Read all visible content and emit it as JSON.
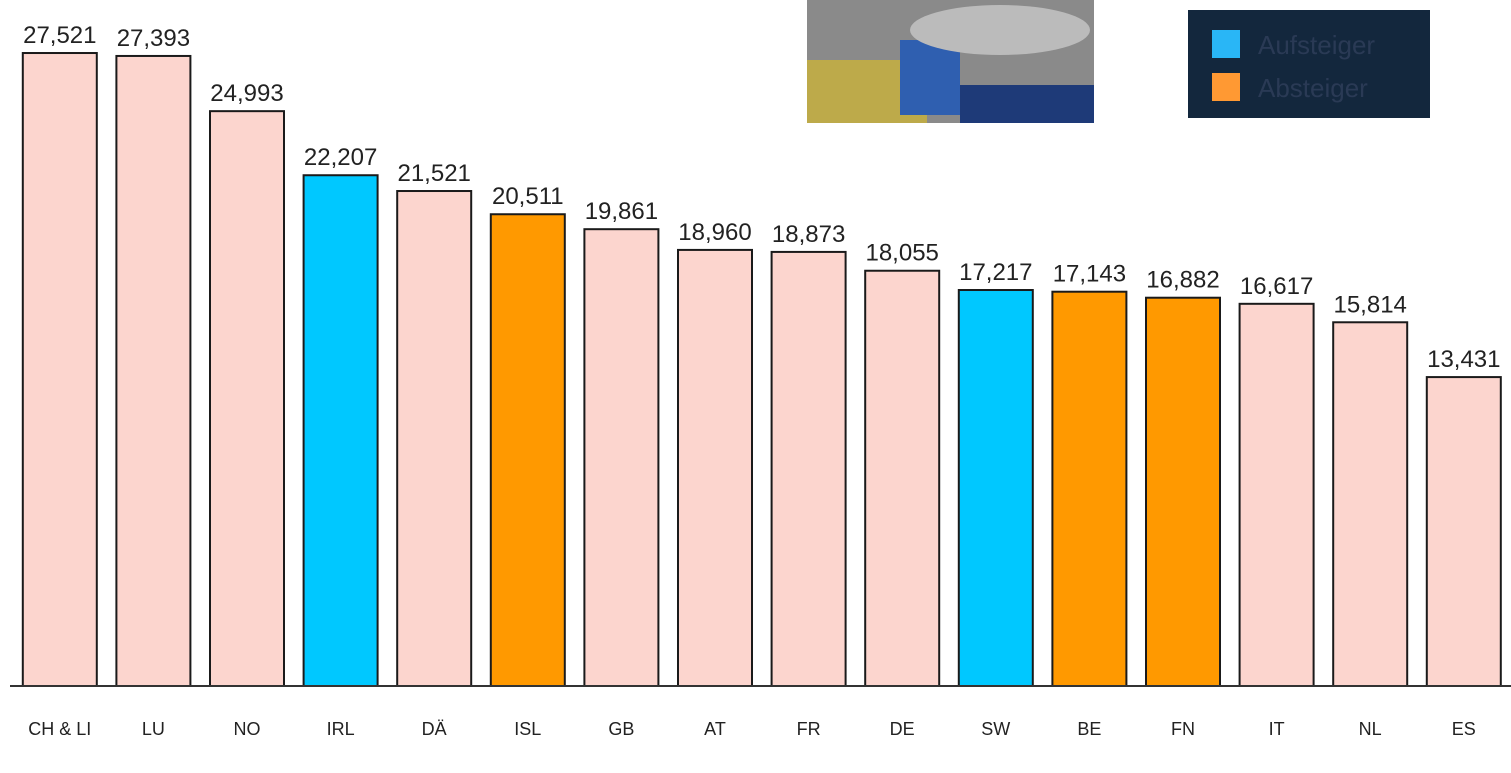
{
  "chart_data": {
    "type": "bar",
    "categories": [
      "CH & LI",
      "LU",
      "NO",
      "IRL",
      "DÄ",
      "ISL",
      "GB",
      "AT",
      "FR",
      "DE",
      "SW",
      "BE",
      "FN",
      "IT",
      "NL",
      "ES"
    ],
    "values": [
      27521,
      27393,
      24993,
      22207,
      21521,
      20511,
      19861,
      18960,
      18873,
      18055,
      17217,
      17143,
      16882,
      16617,
      15814,
      13431
    ],
    "value_labels": [
      "27,521",
      "27,393",
      "24,993",
      "22,207",
      "21,521",
      "20,511",
      "19,861",
      "18,960",
      "18,873",
      "18,055",
      "17,217",
      "17,143",
      "16,882",
      "16,617",
      "15,814",
      "13,431"
    ],
    "colors": [
      "#fcd5ce",
      "#fcd5ce",
      "#fcd5ce",
      "#00c8ff",
      "#fcd5ce",
      "#ff9900",
      "#fcd5ce",
      "#fcd5ce",
      "#fcd5ce",
      "#fcd5ce",
      "#00c8ff",
      "#ff9900",
      "#ff9900",
      "#fcd5ce",
      "#fcd5ce",
      "#fcd5ce"
    ],
    "legend": [
      {
        "label": "Aufsteiger",
        "color": "#29b6f6"
      },
      {
        "label": "Absteiger",
        "color": "#ff9933"
      }
    ],
    "ylim": [
      0,
      30000
    ]
  }
}
